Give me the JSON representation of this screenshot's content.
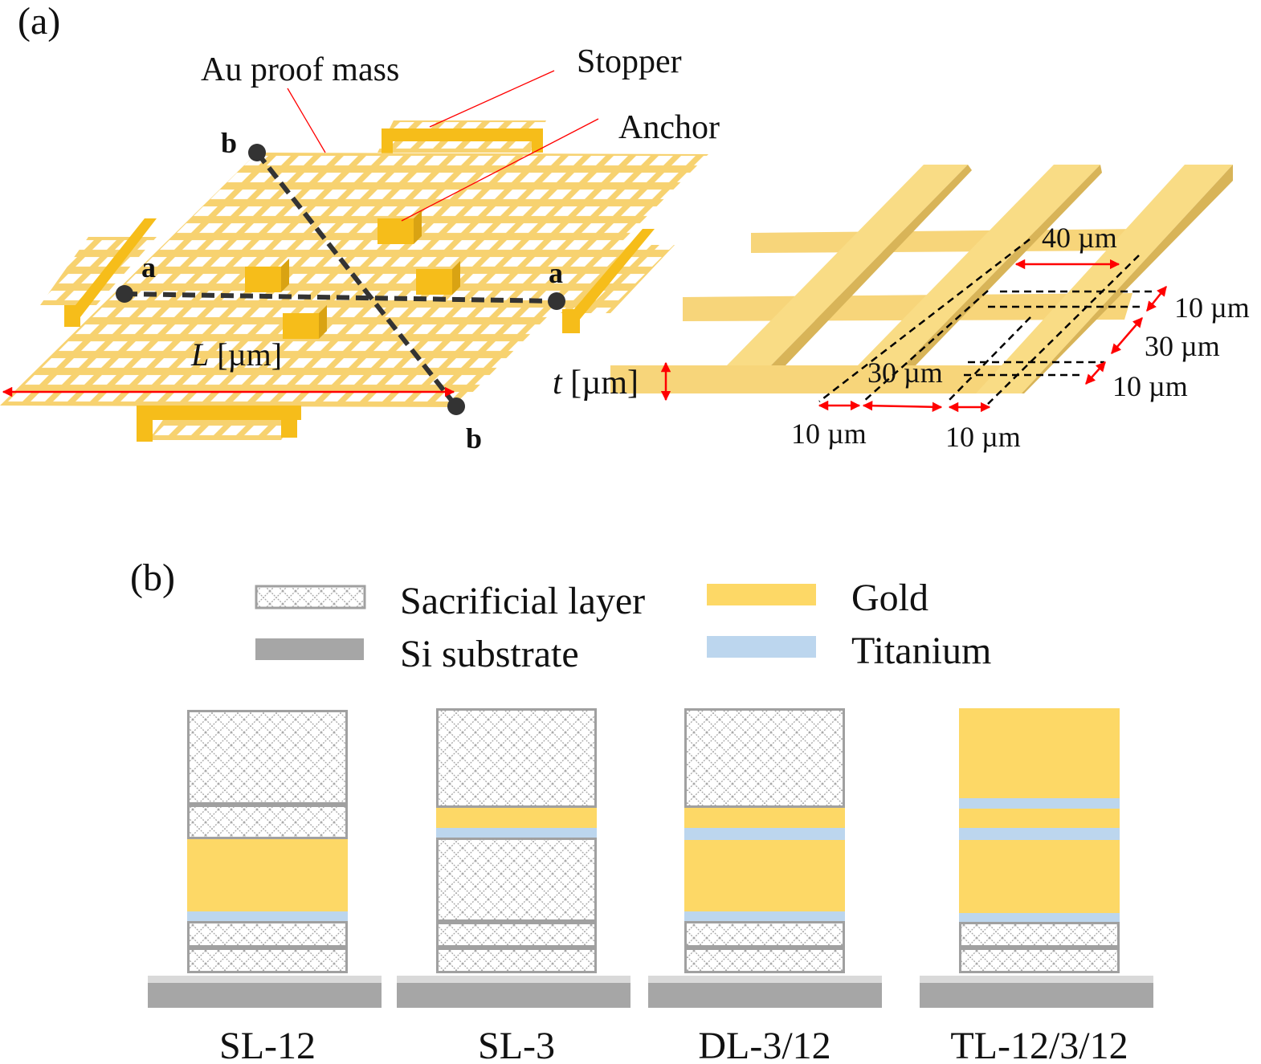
{
  "panel_a": {
    "label": "(a)",
    "callouts": {
      "proof_mass": "Au proof mass",
      "stopper": "Stopper",
      "anchor": "Anchor"
    },
    "points": {
      "a_left": "a",
      "a_right": "a",
      "b_top": "b",
      "b_bottom": "b"
    },
    "length_label_var": "L",
    "length_label_unit": " [µm]",
    "thickness_label_var": "t",
    "thickness_label_unit": " [µm]",
    "dims": {
      "hole_width": "40 µm",
      "beam_h1": "10 µm",
      "hole_h": "30 µm",
      "beam_h2": "10 µm",
      "hole_w2": "30 µm",
      "beam_w1": "10 µm",
      "beam_w2": "10 µm"
    }
  },
  "panel_b": {
    "label": "(b)",
    "legend": [
      {
        "key": "sacrificial",
        "label": "Sacrificial layer"
      },
      {
        "key": "gold",
        "label": "Gold"
      },
      {
        "key": "si",
        "label": "Si substrate"
      },
      {
        "key": "ti",
        "label": "Titanium"
      }
    ],
    "colors": {
      "gold": "#fdd866",
      "ti": "#bcd6ee",
      "si": "#a6a6a6",
      "si_top": "#d9d9d9",
      "sac_border": "#a0a0a0"
    },
    "stacks": [
      {
        "name": "SL-12",
        "layers": [
          "sac",
          "sac",
          "gold",
          "ti",
          "sac",
          "sac"
        ]
      },
      {
        "name": "SL-3",
        "layers": [
          "sac",
          "gold",
          "ti",
          "sac",
          "sac",
          "sac"
        ]
      },
      {
        "name": "DL-3/12",
        "layers": [
          "sac",
          "gold",
          "ti",
          "gold",
          "ti",
          "sac",
          "sac"
        ]
      },
      {
        "name": "TL-12/3/12",
        "layers": [
          "gold",
          "ti",
          "gold",
          "ti",
          "gold",
          "ti",
          "sac",
          "sac"
        ]
      }
    ]
  }
}
